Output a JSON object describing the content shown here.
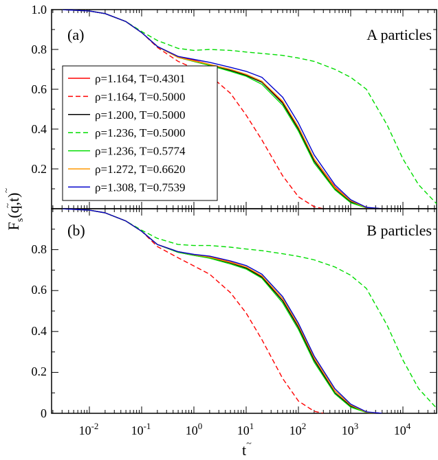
{
  "chart_data": [
    {
      "type": "line",
      "panel_label": "(a)",
      "annotation": "A particles",
      "x_scale": "log",
      "xlim": [
        0.002,
        50000
      ],
      "ylim": [
        0,
        1.0
      ],
      "yticks": [
        "1.0",
        "0.8",
        "0.6",
        "0.4",
        "0.2"
      ],
      "legend_placement": "left",
      "series": [
        {
          "name": "ρ=1.164, T=0.4301",
          "color": "#ff0000",
          "dash": "solid",
          "x": [
            0.003,
            0.01,
            0.02,
            0.05,
            0.1,
            0.2,
            0.5,
            1,
            2,
            5,
            10,
            20,
            50,
            100,
            200,
            500,
            1000,
            2000,
            4000
          ],
          "y": [
            1.0,
            0.993,
            0.98,
            0.94,
            0.885,
            0.815,
            0.765,
            0.745,
            0.725,
            0.7,
            0.675,
            0.64,
            0.535,
            0.41,
            0.25,
            0.11,
            0.04,
            0.005,
            0.0
          ]
        },
        {
          "name": "ρ=1.164, T=0.5000",
          "color": "#ff0000",
          "dash": "dashed",
          "x": [
            0.003,
            0.01,
            0.02,
            0.05,
            0.1,
            0.2,
            0.5,
            1,
            2,
            5,
            10,
            20,
            50,
            100,
            200,
            300
          ],
          "y": [
            1.0,
            0.993,
            0.98,
            0.94,
            0.885,
            0.81,
            0.74,
            0.705,
            0.67,
            0.58,
            0.47,
            0.345,
            0.165,
            0.06,
            0.01,
            0.0
          ]
        },
        {
          "name": "ρ=1.200, T=0.5000",
          "color": "#000000",
          "dash": "solid",
          "x": [
            0.003,
            0.01,
            0.02,
            0.05,
            0.1,
            0.2,
            0.5,
            1,
            2,
            5,
            10,
            20,
            50,
            100,
            200,
            500,
            1000,
            2000,
            4000
          ],
          "y": [
            1.0,
            0.993,
            0.98,
            0.94,
            0.885,
            0.815,
            0.76,
            0.74,
            0.72,
            0.695,
            0.67,
            0.635,
            0.53,
            0.4,
            0.24,
            0.1,
            0.035,
            0.005,
            0.0
          ]
        },
        {
          "name": "ρ=1.236, T=0.5000",
          "color": "#00dd00",
          "dash": "dashed",
          "x": [
            0.003,
            0.01,
            0.02,
            0.05,
            0.1,
            0.2,
            0.5,
            1,
            2,
            5,
            10,
            20,
            50,
            100,
            200,
            500,
            1000,
            2000,
            5000,
            10000,
            20000,
            50000
          ],
          "y": [
            1.0,
            0.993,
            0.98,
            0.94,
            0.89,
            0.845,
            0.805,
            0.795,
            0.8,
            0.795,
            0.787,
            0.78,
            0.77,
            0.757,
            0.74,
            0.7,
            0.66,
            0.6,
            0.42,
            0.25,
            0.12,
            0.01
          ]
        },
        {
          "name": "ρ=1.236, T=0.5774",
          "color": "#00dd00",
          "dash": "solid",
          "x": [
            0.003,
            0.01,
            0.02,
            0.05,
            0.1,
            0.2,
            0.5,
            1,
            2,
            5,
            10,
            20,
            50,
            100,
            200,
            500,
            1000,
            2000,
            4000
          ],
          "y": [
            1.0,
            0.993,
            0.98,
            0.94,
            0.885,
            0.815,
            0.76,
            0.74,
            0.72,
            0.69,
            0.665,
            0.625,
            0.52,
            0.39,
            0.23,
            0.095,
            0.03,
            0.004,
            0.0
          ]
        },
        {
          "name": "ρ=1.272, T=0.6620",
          "color": "#ff9900",
          "dash": "solid",
          "x": [
            0.003,
            0.01,
            0.02,
            0.05,
            0.1,
            0.2,
            0.5,
            1,
            2,
            5,
            10,
            20,
            50,
            100,
            200,
            500,
            1000,
            2000,
            4000
          ],
          "y": [
            1.0,
            0.993,
            0.98,
            0.94,
            0.885,
            0.815,
            0.76,
            0.742,
            0.725,
            0.7,
            0.675,
            0.64,
            0.54,
            0.41,
            0.25,
            0.105,
            0.04,
            0.005,
            0.0
          ]
        },
        {
          "name": "ρ=1.308, T=0.7539",
          "color": "#0000cc",
          "dash": "solid",
          "x": [
            0.003,
            0.01,
            0.02,
            0.05,
            0.1,
            0.2,
            0.5,
            1,
            2,
            5,
            10,
            20,
            50,
            100,
            200,
            500,
            1000,
            2000,
            4000
          ],
          "y": [
            1.0,
            0.993,
            0.98,
            0.94,
            0.885,
            0.815,
            0.765,
            0.75,
            0.735,
            0.71,
            0.69,
            0.66,
            0.56,
            0.43,
            0.27,
            0.12,
            0.045,
            0.007,
            0.0
          ]
        }
      ]
    },
    {
      "type": "line",
      "panel_label": "(b)",
      "annotation": "B particles",
      "x_scale": "log",
      "xlim": [
        0.002,
        50000
      ],
      "ylim": [
        0,
        1.0
      ],
      "yticks": [
        "0.8",
        "0.6",
        "0.4",
        "0.2",
        "0"
      ],
      "series": [
        {
          "name": "ρ=1.164, T=0.4301",
          "color": "#ff0000",
          "dash": "solid",
          "x": [
            0.003,
            0.01,
            0.02,
            0.05,
            0.1,
            0.2,
            0.5,
            1,
            2,
            5,
            10,
            20,
            50,
            100,
            200,
            500,
            1000,
            2000,
            4000
          ],
          "y": [
            1.0,
            0.993,
            0.98,
            0.94,
            0.89,
            0.825,
            0.79,
            0.775,
            0.765,
            0.74,
            0.715,
            0.67,
            0.56,
            0.43,
            0.27,
            0.11,
            0.04,
            0.005,
            0.0
          ]
        },
        {
          "name": "ρ=1.164, T=0.5000",
          "color": "#ff0000",
          "dash": "dashed",
          "x": [
            0.003,
            0.01,
            0.02,
            0.05,
            0.1,
            0.2,
            0.5,
            1,
            2,
            5,
            10,
            20,
            50,
            100,
            200,
            300
          ],
          "y": [
            1.0,
            0.993,
            0.98,
            0.94,
            0.89,
            0.815,
            0.76,
            0.72,
            0.68,
            0.59,
            0.49,
            0.36,
            0.17,
            0.06,
            0.01,
            0.0
          ]
        },
        {
          "name": "ρ=1.200, T=0.5000",
          "color": "#000000",
          "dash": "solid",
          "x": [
            0.003,
            0.01,
            0.02,
            0.05,
            0.1,
            0.2,
            0.5,
            1,
            2,
            5,
            10,
            20,
            50,
            100,
            200,
            500,
            1000,
            2000,
            4000
          ],
          "y": [
            1.0,
            0.993,
            0.98,
            0.94,
            0.89,
            0.825,
            0.787,
            0.772,
            0.76,
            0.735,
            0.71,
            0.665,
            0.55,
            0.42,
            0.26,
            0.1,
            0.035,
            0.005,
            0.0
          ]
        },
        {
          "name": "ρ=1.236, T=0.5000",
          "color": "#00dd00",
          "dash": "dashed",
          "x": [
            0.003,
            0.01,
            0.02,
            0.05,
            0.1,
            0.2,
            0.5,
            1,
            2,
            5,
            10,
            20,
            50,
            100,
            200,
            500,
            1000,
            2000,
            5000,
            10000,
            20000,
            50000
          ],
          "y": [
            1.0,
            0.993,
            0.98,
            0.94,
            0.895,
            0.855,
            0.825,
            0.82,
            0.82,
            0.812,
            0.803,
            0.795,
            0.78,
            0.767,
            0.75,
            0.715,
            0.675,
            0.61,
            0.43,
            0.26,
            0.12,
            0.01
          ]
        },
        {
          "name": "ρ=1.236, T=0.5774",
          "color": "#00dd00",
          "dash": "solid",
          "x": [
            0.003,
            0.01,
            0.02,
            0.05,
            0.1,
            0.2,
            0.5,
            1,
            2,
            5,
            10,
            20,
            50,
            100,
            200,
            500,
            1000,
            2000,
            4000
          ],
          "y": [
            1.0,
            0.993,
            0.98,
            0.94,
            0.89,
            0.825,
            0.787,
            0.772,
            0.758,
            0.73,
            0.705,
            0.66,
            0.54,
            0.41,
            0.25,
            0.095,
            0.03,
            0.004,
            0.0
          ]
        },
        {
          "name": "ρ=1.272, T=0.6620",
          "color": "#ff9900",
          "dash": "solid",
          "x": [
            0.003,
            0.01,
            0.02,
            0.05,
            0.1,
            0.2,
            0.5,
            1,
            2,
            5,
            10,
            20,
            50,
            100,
            200,
            500,
            1000,
            2000,
            4000
          ],
          "y": [
            1.0,
            0.993,
            0.98,
            0.94,
            0.89,
            0.825,
            0.79,
            0.775,
            0.763,
            0.738,
            0.715,
            0.672,
            0.56,
            0.43,
            0.27,
            0.11,
            0.04,
            0.005,
            0.0
          ]
        },
        {
          "name": "ρ=1.308, T=0.7539",
          "color": "#0000cc",
          "dash": "solid",
          "x": [
            0.003,
            0.01,
            0.02,
            0.05,
            0.1,
            0.2,
            0.5,
            1,
            2,
            5,
            10,
            20,
            50,
            100,
            200,
            500,
            1000,
            2000,
            4000
          ],
          "y": [
            1.0,
            0.993,
            0.98,
            0.94,
            0.89,
            0.825,
            0.79,
            0.777,
            0.768,
            0.745,
            0.722,
            0.68,
            0.57,
            0.44,
            0.28,
            0.12,
            0.045,
            0.007,
            0.0
          ]
        }
      ]
    }
  ],
  "x_axis": {
    "tick_labels": [
      {
        "base": "10",
        "exp": "-2",
        "value": 0.01
      },
      {
        "base": "10",
        "exp": "-1",
        "value": 0.1
      },
      {
        "base": "10",
        "exp": "0",
        "value": 1
      },
      {
        "base": "10",
        "exp": "1",
        "value": 10
      },
      {
        "base": "10",
        "exp": "2",
        "value": 100
      },
      {
        "base": "10",
        "exp": "3",
        "value": 1000
      },
      {
        "base": "10",
        "exp": "4",
        "value": 10000
      }
    ],
    "label_main": "t",
    "label_tilde": "~"
  },
  "y_axis": {
    "label_main": "F",
    "label_sub": "s",
    "label_tail": "(q,t)",
    "label_tilde_1": "~",
    "label_tilde_2": "~"
  }
}
